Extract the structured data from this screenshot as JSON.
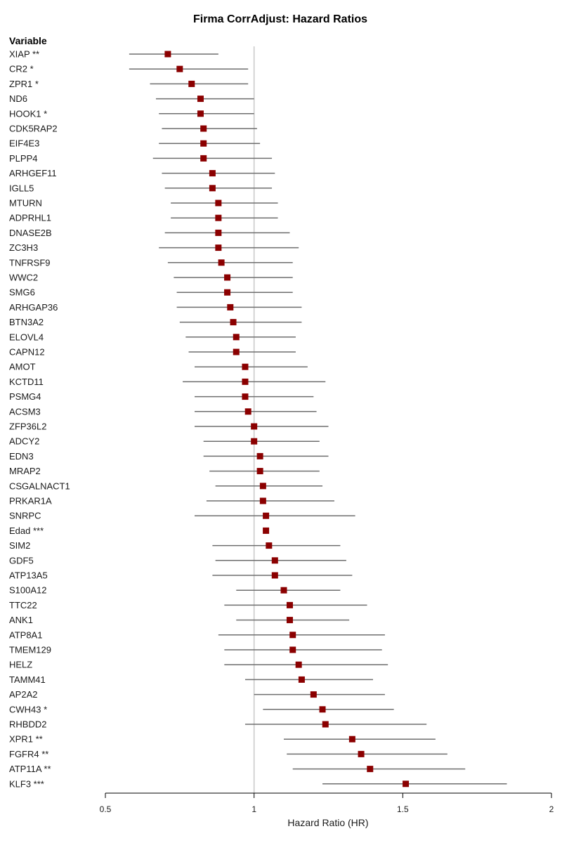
{
  "chart_data": {
    "type": "forest",
    "title": "Firma CorrAdjust: Hazard Ratios",
    "column_header": "Variable",
    "xlabel": "Hazard Ratio (HR)",
    "xlim": [
      0.5,
      2
    ],
    "x_ticks": [
      "0.5",
      "1",
      "1.5",
      "2"
    ],
    "reference_line": 1,
    "colors": {
      "point": "#8b0000",
      "ci_line": "#6e6e6e",
      "reference": "#c8c8c8",
      "axis": "#000000"
    },
    "rows": [
      {
        "label": "XIAP **",
        "hr": 0.71,
        "lo": 0.58,
        "hi": 0.88
      },
      {
        "label": "CR2 *",
        "hr": 0.75,
        "lo": 0.58,
        "hi": 0.98
      },
      {
        "label": "ZPR1 *",
        "hr": 0.79,
        "lo": 0.65,
        "hi": 0.98
      },
      {
        "label": "ND6",
        "hr": 0.82,
        "lo": 0.67,
        "hi": 1.0
      },
      {
        "label": "HOOK1 *",
        "hr": 0.82,
        "lo": 0.68,
        "hi": 1.0
      },
      {
        "label": "CDK5RAP2",
        "hr": 0.83,
        "lo": 0.69,
        "hi": 1.01
      },
      {
        "label": "EIF4E3",
        "hr": 0.83,
        "lo": 0.68,
        "hi": 1.02
      },
      {
        "label": "PLPP4",
        "hr": 0.83,
        "lo": 0.66,
        "hi": 1.06
      },
      {
        "label": "ARHGEF11",
        "hr": 0.86,
        "lo": 0.69,
        "hi": 1.07
      },
      {
        "label": "IGLL5",
        "hr": 0.86,
        "lo": 0.7,
        "hi": 1.06
      },
      {
        "label": "MTURN",
        "hr": 0.88,
        "lo": 0.72,
        "hi": 1.08
      },
      {
        "label": "ADPRHL1",
        "hr": 0.88,
        "lo": 0.72,
        "hi": 1.08
      },
      {
        "label": "DNASE2B",
        "hr": 0.88,
        "lo": 0.7,
        "hi": 1.12
      },
      {
        "label": "ZC3H3",
        "hr": 0.88,
        "lo": 0.68,
        "hi": 1.15
      },
      {
        "label": "TNFRSF9",
        "hr": 0.89,
        "lo": 0.71,
        "hi": 1.13
      },
      {
        "label": "WWC2",
        "hr": 0.91,
        "lo": 0.73,
        "hi": 1.13
      },
      {
        "label": "SMG6",
        "hr": 0.91,
        "lo": 0.74,
        "hi": 1.13
      },
      {
        "label": "ARHGAP36",
        "hr": 0.92,
        "lo": 0.74,
        "hi": 1.16
      },
      {
        "label": "BTN3A2",
        "hr": 0.93,
        "lo": 0.75,
        "hi": 1.16
      },
      {
        "label": "ELOVL4",
        "hr": 0.94,
        "lo": 0.77,
        "hi": 1.14
      },
      {
        "label": "CAPN12",
        "hr": 0.94,
        "lo": 0.78,
        "hi": 1.14
      },
      {
        "label": "AMOT",
        "hr": 0.97,
        "lo": 0.8,
        "hi": 1.18
      },
      {
        "label": "KCTD11",
        "hr": 0.97,
        "lo": 0.76,
        "hi": 1.24
      },
      {
        "label": "PSMG4",
        "hr": 0.97,
        "lo": 0.8,
        "hi": 1.2
      },
      {
        "label": "ACSM3",
        "hr": 0.98,
        "lo": 0.8,
        "hi": 1.21
      },
      {
        "label": "ZFP36L2",
        "hr": 1.0,
        "lo": 0.8,
        "hi": 1.25
      },
      {
        "label": "ADCY2",
        "hr": 1.0,
        "lo": 0.83,
        "hi": 1.22
      },
      {
        "label": "EDN3",
        "hr": 1.02,
        "lo": 0.83,
        "hi": 1.25
      },
      {
        "label": "MRAP2",
        "hr": 1.02,
        "lo": 0.85,
        "hi": 1.22
      },
      {
        "label": "CSGALNACT1",
        "hr": 1.03,
        "lo": 0.87,
        "hi": 1.23
      },
      {
        "label": "PRKAR1A",
        "hr": 1.03,
        "lo": 0.84,
        "hi": 1.27
      },
      {
        "label": "SNRPC",
        "hr": 1.04,
        "lo": 0.8,
        "hi": 1.34
      },
      {
        "label": "Edad ***",
        "hr": 1.04,
        "lo": 1.03,
        "hi": 1.05
      },
      {
        "label": "SIM2",
        "hr": 1.05,
        "lo": 0.86,
        "hi": 1.29
      },
      {
        "label": "GDF5",
        "hr": 1.07,
        "lo": 0.87,
        "hi": 1.31
      },
      {
        "label": "ATP13A5",
        "hr": 1.07,
        "lo": 0.86,
        "hi": 1.33
      },
      {
        "label": "S100A12",
        "hr": 1.1,
        "lo": 0.94,
        "hi": 1.29
      },
      {
        "label": "TTC22",
        "hr": 1.12,
        "lo": 0.9,
        "hi": 1.38
      },
      {
        "label": "ANK1",
        "hr": 1.12,
        "lo": 0.94,
        "hi": 1.32
      },
      {
        "label": "ATP8A1",
        "hr": 1.13,
        "lo": 0.88,
        "hi": 1.44
      },
      {
        "label": "TMEM129",
        "hr": 1.13,
        "lo": 0.9,
        "hi": 1.43
      },
      {
        "label": "HELZ",
        "hr": 1.15,
        "lo": 0.9,
        "hi": 1.45
      },
      {
        "label": "TAMM41",
        "hr": 1.16,
        "lo": 0.97,
        "hi": 1.4
      },
      {
        "label": "AP2A2",
        "hr": 1.2,
        "lo": 1.0,
        "hi": 1.44
      },
      {
        "label": "CWH43 *",
        "hr": 1.23,
        "lo": 1.03,
        "hi": 1.47
      },
      {
        "label": "RHBDD2",
        "hr": 1.24,
        "lo": 0.97,
        "hi": 1.58
      },
      {
        "label": "XPR1 **",
        "hr": 1.33,
        "lo": 1.1,
        "hi": 1.61
      },
      {
        "label": "FGFR4 **",
        "hr": 1.36,
        "lo": 1.11,
        "hi": 1.65
      },
      {
        "label": "ATP11A **",
        "hr": 1.39,
        "lo": 1.13,
        "hi": 1.71
      },
      {
        "label": "KLF3 ***",
        "hr": 1.51,
        "lo": 1.23,
        "hi": 1.85
      }
    ]
  }
}
